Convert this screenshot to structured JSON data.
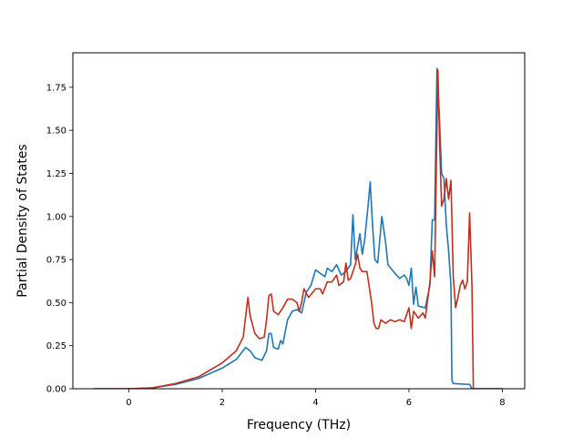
{
  "chart_data": {
    "type": "line",
    "title": "",
    "xlabel": "Frequency (THz)",
    "ylabel": "Partial Density of States",
    "xlim": [
      -1.2,
      8.48
    ],
    "ylim": [
      0,
      1.95
    ],
    "xticks": [
      0,
      2,
      4,
      6,
      8
    ],
    "yticks": [
      0.0,
      0.25,
      0.5,
      0.75,
      1.0,
      1.25,
      1.5,
      1.75
    ],
    "xtick_labels": [
      "0",
      "2",
      "4",
      "6",
      "8"
    ],
    "ytick_labels": [
      "0.00",
      "0.25",
      "0.50",
      "0.75",
      "1.00",
      "1.25",
      "1.50",
      "1.75"
    ],
    "grid": false,
    "series": [
      {
        "color": "#1f77b4",
        "points": [
          [
            -0.75,
            0.0
          ],
          [
            0.0,
            0.0
          ],
          [
            0.5,
            0.005
          ],
          [
            1.0,
            0.025
          ],
          [
            1.5,
            0.06
          ],
          [
            2.0,
            0.12
          ],
          [
            2.3,
            0.17
          ],
          [
            2.5,
            0.24
          ],
          [
            2.6,
            0.22
          ],
          [
            2.7,
            0.18
          ],
          [
            2.85,
            0.165
          ],
          [
            2.95,
            0.22
          ],
          [
            3.0,
            0.32
          ],
          [
            3.05,
            0.32
          ],
          [
            3.1,
            0.24
          ],
          [
            3.2,
            0.23
          ],
          [
            3.25,
            0.28
          ],
          [
            3.3,
            0.26
          ],
          [
            3.4,
            0.4
          ],
          [
            3.5,
            0.45
          ],
          [
            3.6,
            0.46
          ],
          [
            3.7,
            0.44
          ],
          [
            3.8,
            0.56
          ],
          [
            3.9,
            0.6
          ],
          [
            4.0,
            0.69
          ],
          [
            4.1,
            0.67
          ],
          [
            4.2,
            0.65
          ],
          [
            4.25,
            0.7
          ],
          [
            4.35,
            0.68
          ],
          [
            4.45,
            0.72
          ],
          [
            4.55,
            0.66
          ],
          [
            4.65,
            0.68
          ],
          [
            4.75,
            0.72
          ],
          [
            4.8,
            1.01
          ],
          [
            4.85,
            0.75
          ],
          [
            4.95,
            0.9
          ],
          [
            5.0,
            0.78
          ],
          [
            5.05,
            0.86
          ],
          [
            5.12,
            1.05
          ],
          [
            5.17,
            1.2
          ],
          [
            5.22,
            0.95
          ],
          [
            5.27,
            0.75
          ],
          [
            5.33,
            0.73
          ],
          [
            5.42,
            1.0
          ],
          [
            5.5,
            0.85
          ],
          [
            5.55,
            0.72
          ],
          [
            5.7,
            0.67
          ],
          [
            5.8,
            0.64
          ],
          [
            5.9,
            0.66
          ],
          [
            5.95,
            0.64
          ],
          [
            6.0,
            0.6
          ],
          [
            6.05,
            0.7
          ],
          [
            6.1,
            0.49
          ],
          [
            6.15,
            0.59
          ],
          [
            6.2,
            0.48
          ],
          [
            6.35,
            0.47
          ],
          [
            6.45,
            0.6
          ],
          [
            6.5,
            0.98
          ],
          [
            6.55,
            0.98
          ],
          [
            6.6,
            1.86
          ],
          [
            6.65,
            1.6
          ],
          [
            6.7,
            1.25
          ],
          [
            6.75,
            1.22
          ],
          [
            6.8,
            0.95
          ],
          [
            6.85,
            0.8
          ],
          [
            6.9,
            0.6
          ],
          [
            6.92,
            0.05
          ],
          [
            6.95,
            0.03
          ],
          [
            7.3,
            0.025
          ],
          [
            7.35,
            0.0
          ],
          [
            8.0,
            0.0
          ]
        ]
      },
      {
        "color": "#c03020",
        "points": [
          [
            -0.75,
            0.0
          ],
          [
            0.0,
            0.0
          ],
          [
            0.5,
            0.005
          ],
          [
            1.0,
            0.03
          ],
          [
            1.5,
            0.07
          ],
          [
            2.0,
            0.15
          ],
          [
            2.3,
            0.22
          ],
          [
            2.45,
            0.3
          ],
          [
            2.55,
            0.53
          ],
          [
            2.6,
            0.42
          ],
          [
            2.7,
            0.32
          ],
          [
            2.8,
            0.29
          ],
          [
            2.9,
            0.3
          ],
          [
            2.95,
            0.4
          ],
          [
            3.0,
            0.54
          ],
          [
            3.05,
            0.55
          ],
          [
            3.1,
            0.45
          ],
          [
            3.2,
            0.43
          ],
          [
            3.3,
            0.47
          ],
          [
            3.4,
            0.52
          ],
          [
            3.5,
            0.52
          ],
          [
            3.6,
            0.5
          ],
          [
            3.65,
            0.45
          ],
          [
            3.7,
            0.5
          ],
          [
            3.75,
            0.58
          ],
          [
            3.85,
            0.53
          ],
          [
            4.0,
            0.58
          ],
          [
            4.1,
            0.58
          ],
          [
            4.15,
            0.55
          ],
          [
            4.25,
            0.62
          ],
          [
            4.35,
            0.62
          ],
          [
            4.45,
            0.66
          ],
          [
            4.5,
            0.6
          ],
          [
            4.6,
            0.62
          ],
          [
            4.65,
            0.73
          ],
          [
            4.7,
            0.63
          ],
          [
            4.75,
            0.64
          ],
          [
            4.85,
            0.72
          ],
          [
            4.9,
            0.78
          ],
          [
            4.95,
            0.7
          ],
          [
            5.0,
            0.68
          ],
          [
            5.1,
            0.68
          ],
          [
            5.2,
            0.5
          ],
          [
            5.25,
            0.38
          ],
          [
            5.3,
            0.35
          ],
          [
            5.35,
            0.35
          ],
          [
            5.4,
            0.4
          ],
          [
            5.5,
            0.38
          ],
          [
            5.6,
            0.4
          ],
          [
            5.7,
            0.39
          ],
          [
            5.8,
            0.4
          ],
          [
            5.9,
            0.39
          ],
          [
            6.0,
            0.47
          ],
          [
            6.05,
            0.35
          ],
          [
            6.1,
            0.45
          ],
          [
            6.2,
            0.41
          ],
          [
            6.3,
            0.44
          ],
          [
            6.35,
            0.41
          ],
          [
            6.45,
            0.62
          ],
          [
            6.5,
            0.8
          ],
          [
            6.55,
            0.65
          ],
          [
            6.62,
            1.85
          ],
          [
            6.66,
            1.4
          ],
          [
            6.7,
            1.06
          ],
          [
            6.75,
            1.1
          ],
          [
            6.8,
            1.22
          ],
          [
            6.85,
            1.1
          ],
          [
            6.9,
            1.21
          ],
          [
            6.95,
            0.65
          ],
          [
            7.0,
            0.47
          ],
          [
            7.05,
            0.53
          ],
          [
            7.1,
            0.6
          ],
          [
            7.15,
            0.63
          ],
          [
            7.2,
            0.58
          ],
          [
            7.25,
            0.62
          ],
          [
            7.3,
            1.02
          ],
          [
            7.35,
            0.6
          ],
          [
            7.38,
            0.0
          ],
          [
            8.0,
            0.0
          ]
        ]
      }
    ]
  }
}
